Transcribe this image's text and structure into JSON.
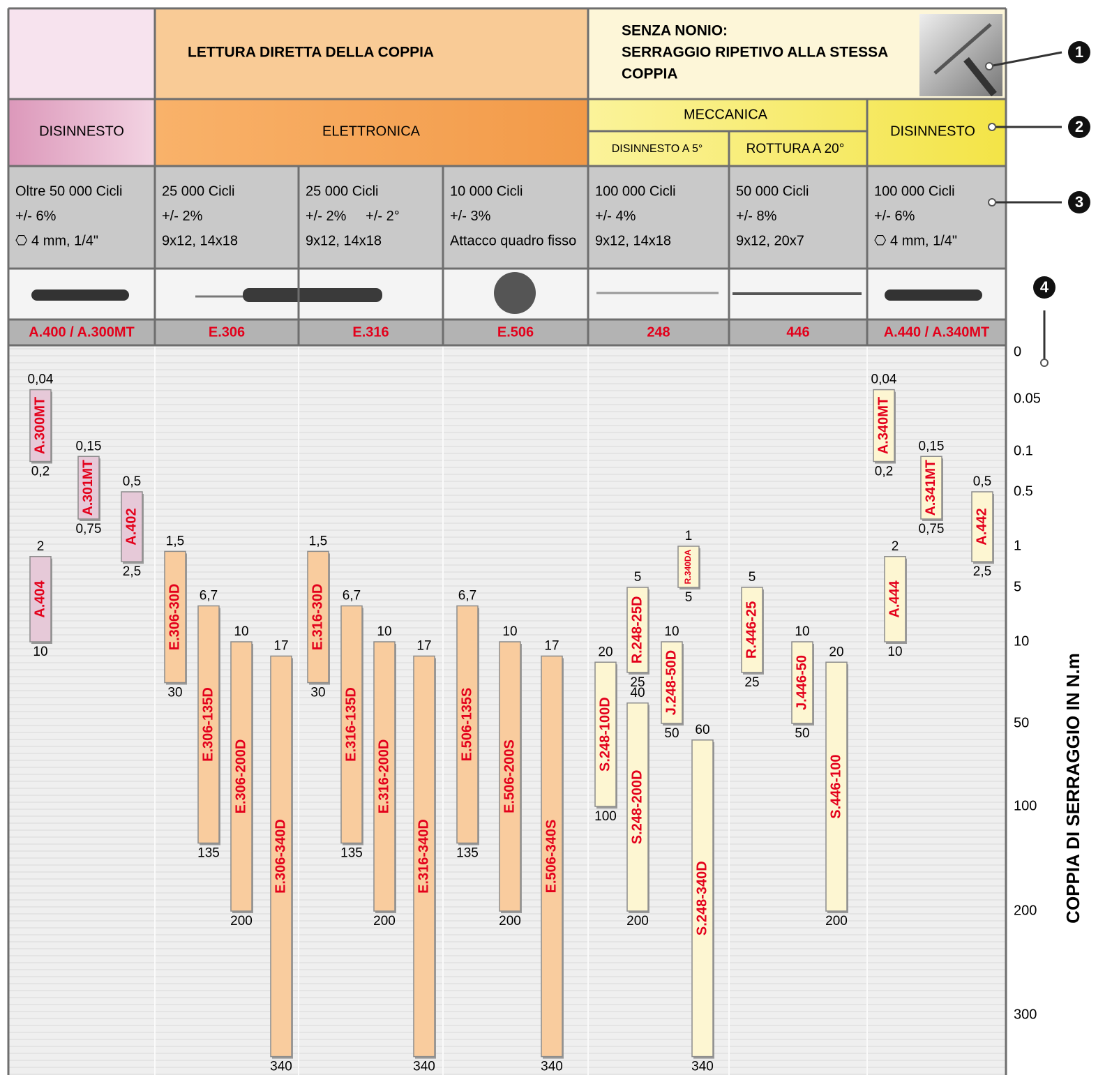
{
  "header": {
    "direct_reading": "LETTURA DIRETTA DELLA COPPIA",
    "repeat_tightening": [
      "SENZA NONIO:",
      "SERRAGGIO RIPETIVO ALLA STESSA",
      "COPPIA"
    ]
  },
  "types": {
    "disinnesto_left": "DISINNESTO",
    "elettronica": "ELETTRONICA",
    "meccanica": "MECCANICA",
    "meccanica_sub": [
      "DISINNESTO A 5°",
      "ROTTURA A 20°"
    ],
    "disinnesto_right": "DISINNESTO"
  },
  "columns": [
    {
      "specs": [
        "Oltre 50 000 Cicli",
        "+/- 6%",
        "⎔ 4 mm, 1/4\""
      ],
      "code": "A.400 / A.300MT",
      "bar_color": "#e6c9d8",
      "bars": [
        {
          "name": "A.300MT",
          "from": 0.04,
          "from_label": "0,04",
          "to": 0.2,
          "to_label": "0,2"
        },
        {
          "name": "A.301MT",
          "from": 0.15,
          "from_label": "0,15",
          "to": 0.75,
          "to_label": "0,75"
        },
        {
          "name": "A.402",
          "from": 0.5,
          "from_label": "0,5",
          "to": 2.5,
          "to_label": "2,5"
        },
        {
          "name": "A.404",
          "from": 2,
          "to": 10
        }
      ]
    },
    {
      "specs": [
        "25 000 Cicli",
        "+/- 2%",
        "9x12, 14x18"
      ],
      "code": "E.306",
      "bar_color": "#f9cc9e",
      "bars": [
        {
          "name": "E.306-30D",
          "from": 1.5,
          "from_label": "1,5",
          "to": 30
        },
        {
          "name": "E.306-135D",
          "from": 6.7,
          "from_label": "6,7",
          "to": 135
        },
        {
          "name": "E.306-200D",
          "from": 10,
          "to": 200
        },
        {
          "name": "E.306-340D",
          "from": 17,
          "to": 340
        }
      ]
    },
    {
      "specs": [
        "25 000 Cicli",
        "+/- 2%     +/- 2°",
        "9x12, 14x18"
      ],
      "code": "E.316",
      "bar_color": "#f9cc9e",
      "bars": [
        {
          "name": "E.316-30D",
          "from": 1.5,
          "from_label": "1,5",
          "to": 30
        },
        {
          "name": "E.316-135D",
          "from": 6.7,
          "from_label": "6,7",
          "to": 135
        },
        {
          "name": "E.316-200D",
          "from": 10,
          "to": 200
        },
        {
          "name": "E.316-340D",
          "from": 17,
          "to": 340
        }
      ]
    },
    {
      "specs": [
        "10 000 Cicli",
        "+/- 3%",
        "Attacco quadro fisso"
      ],
      "code": "E.506",
      "bar_color": "#f9cc9e",
      "bars": [
        {
          "name": "E.506-135S",
          "from": 6.7,
          "from_label": "6,7",
          "to": 135
        },
        {
          "name": "E.506-200S",
          "from": 10,
          "to": 200
        },
        {
          "name": "E.506-340S",
          "from": 17,
          "to": 340
        }
      ]
    },
    {
      "specs": [
        "100 000 Cicli",
        "+/- 4%",
        "9x12, 14x18"
      ],
      "code": "248",
      "bar_color": "#fdf6d2",
      "bars": [
        {
          "name": "S.248-100D",
          "from": 20,
          "to": 100
        },
        {
          "name": "R.248-25D",
          "from": 5,
          "to": 25
        },
        {
          "name": "S.248-200D",
          "from": 40,
          "to": 200
        },
        {
          "name": "R.340DA",
          "from": 1,
          "to": 5
        },
        {
          "name": "J.248-50D",
          "from": 10,
          "to": 50
        },
        {
          "name": "S.248-340D",
          "from": 60,
          "to": 340
        }
      ]
    },
    {
      "specs": [
        "50 000 Cicli",
        "+/- 8%",
        "9x12, 20x7"
      ],
      "code": "446",
      "bar_color": "#fdf6d2",
      "bars": [
        {
          "name": "R.446-25",
          "from": 5,
          "to": 25
        },
        {
          "name": "J.446-50",
          "from": 10,
          "to": 50
        },
        {
          "name": "S.446-100",
          "from": 20,
          "to": 200
        }
      ]
    },
    {
      "specs": [
        "100 000 Cicli",
        "+/- 6%",
        "⎔ 4 mm, 1/4\""
      ],
      "code": "A.440 / A.340MT",
      "bar_color": "#fdf6d2",
      "bars": [
        {
          "name": "A.340MT",
          "from": 0.04,
          "from_label": "0,04",
          "to": 0.2,
          "to_label": "0,2"
        },
        {
          "name": "A.341MT",
          "from": 0.15,
          "from_label": "0,15",
          "to": 0.75,
          "to_label": "0,75"
        },
        {
          "name": "A.442",
          "from": 0.5,
          "from_label": "0,5",
          "to": 2.5,
          "to_label": "2,5"
        },
        {
          "name": "A.444",
          "from": 2,
          "to": 10
        }
      ]
    }
  ],
  "axis": {
    "title": "COPPIA DI SERRAGGIO IN N.m",
    "ticks": [
      0,
      0.05,
      0.1,
      0.5,
      1,
      5,
      10,
      50,
      100,
      200,
      300
    ]
  },
  "callouts": [
    "1",
    "2",
    "3",
    "4"
  ]
}
